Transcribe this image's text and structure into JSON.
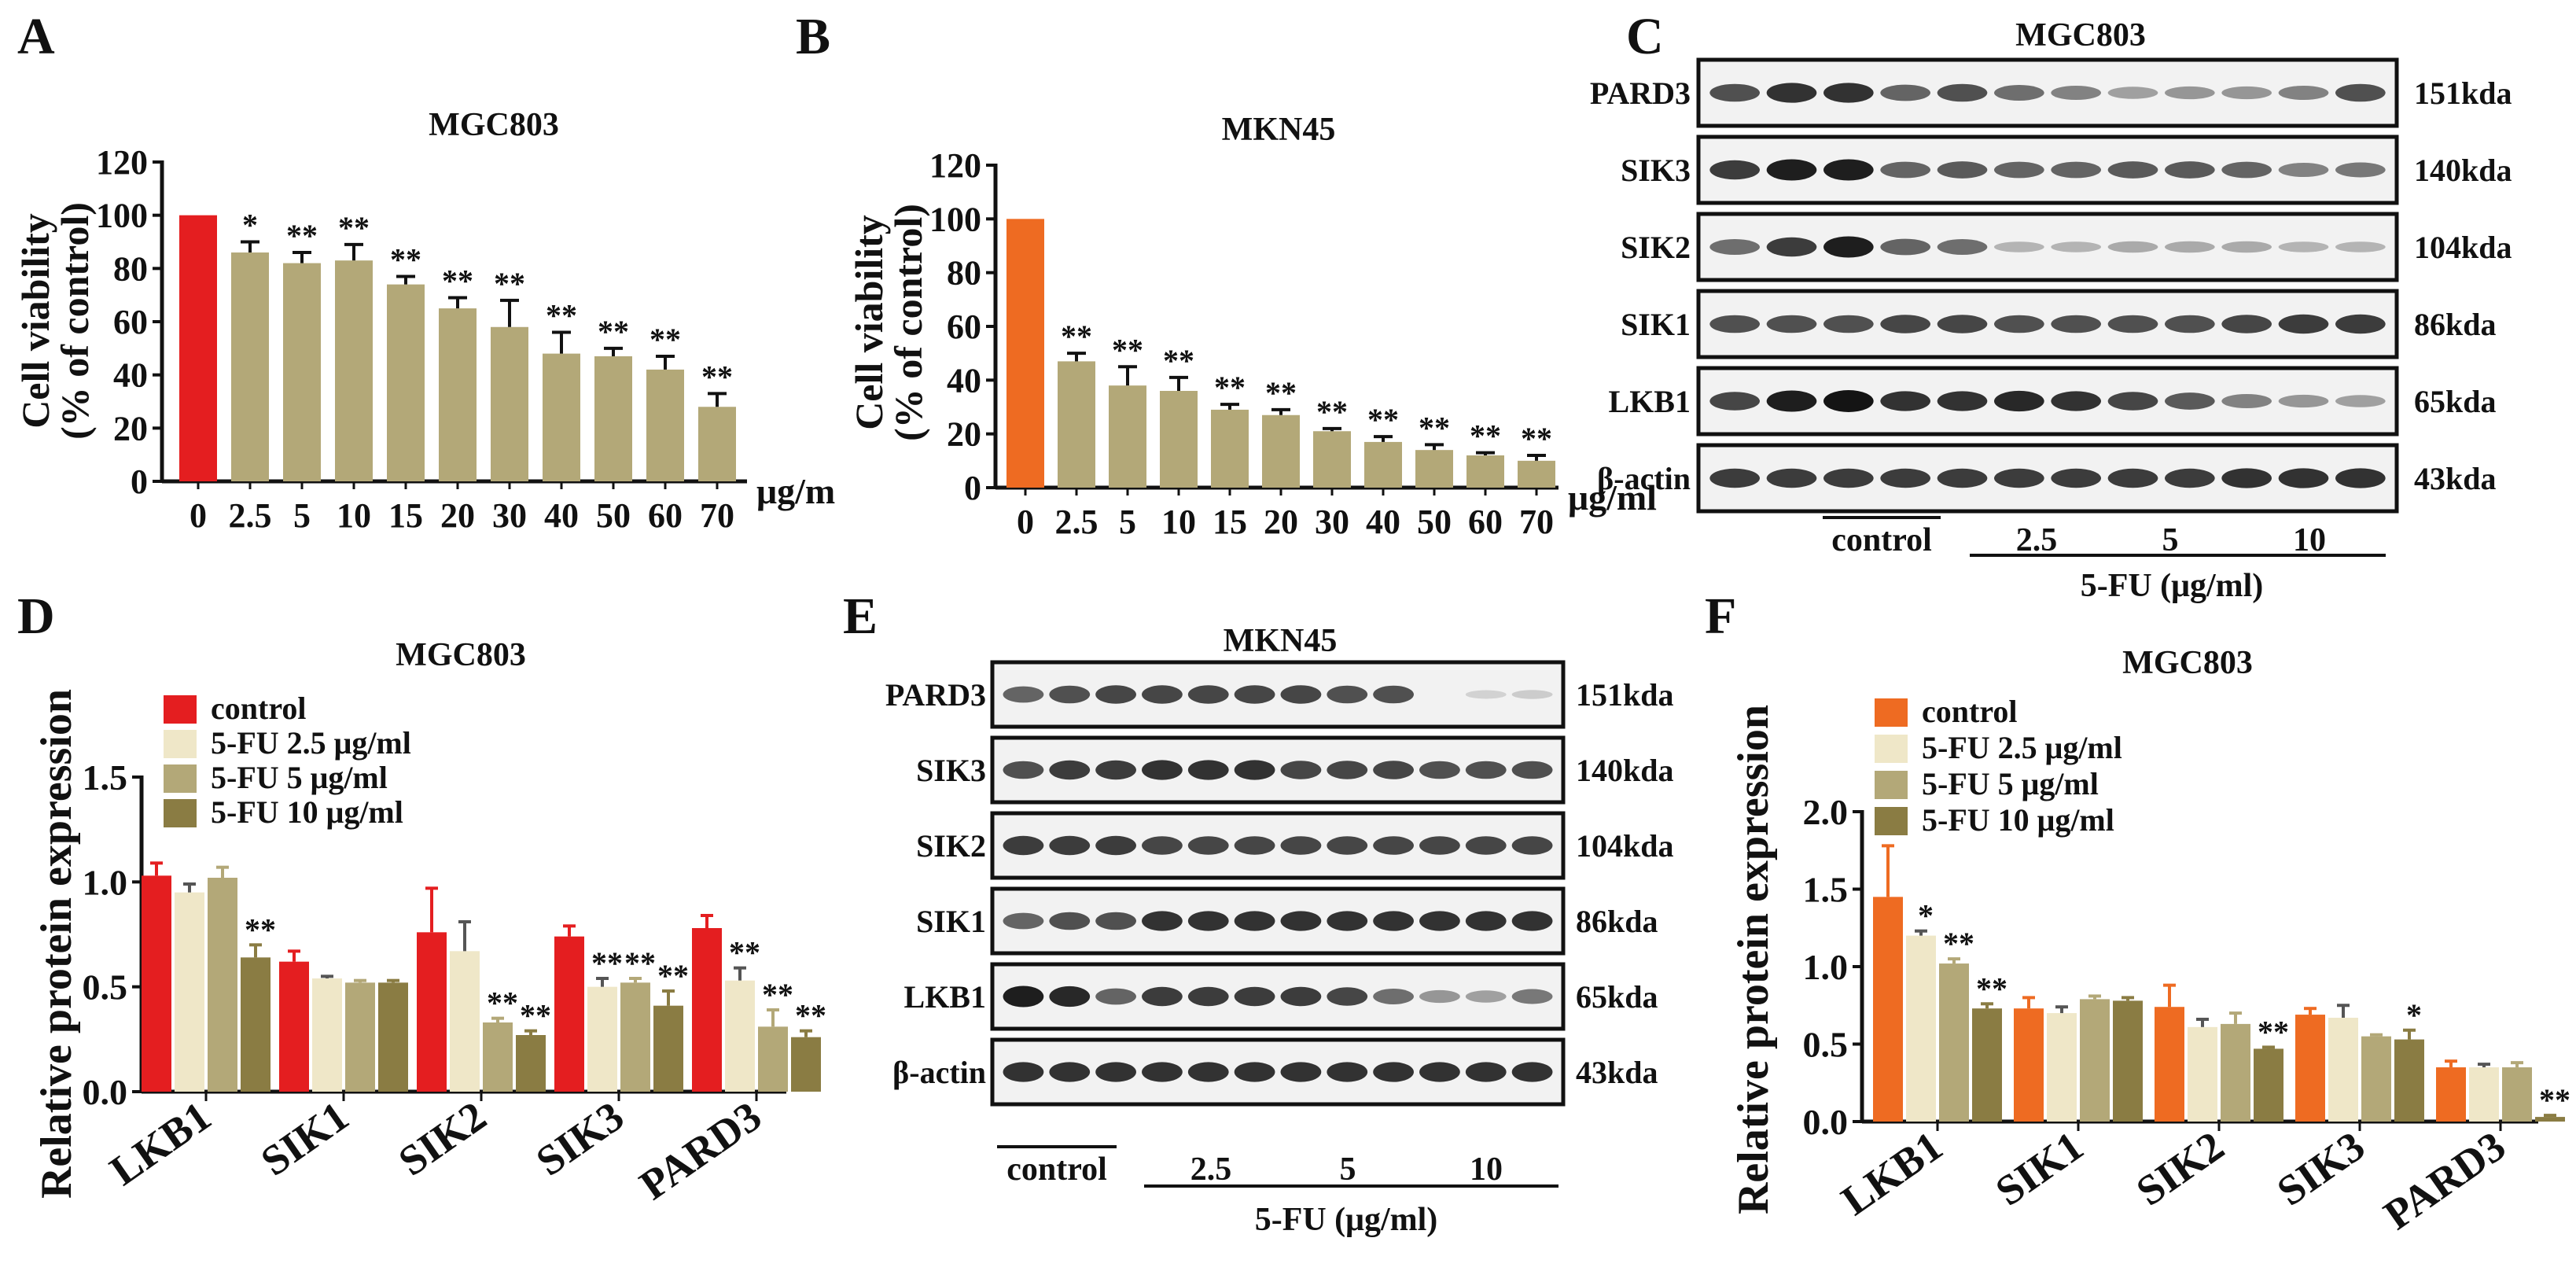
{
  "panels": {
    "A": {
      "letter": "A",
      "chart_data": {
        "type": "bar",
        "title": "MGC803",
        "ylabel_line1": "Cell viability",
        "ylabel_line2": "(% of control)",
        "xunit": "μg/m",
        "ylim": [
          0,
          120
        ],
        "yticks": [
          "0",
          "20",
          "40",
          "60",
          "80",
          "100",
          "120"
        ],
        "categories": [
          "0",
          "2.5",
          "5",
          "10",
          "15",
          "20",
          "30",
          "40",
          "50",
          "60",
          "70"
        ],
        "values": [
          100,
          86,
          82,
          83,
          74,
          65,
          58,
          48,
          47,
          42,
          28
        ],
        "errors": [
          0,
          4,
          4,
          6,
          3,
          4,
          10,
          8,
          3,
          5,
          5
        ],
        "stars": [
          "",
          "*",
          "**",
          "**",
          "**",
          "**",
          "**",
          "**",
          "**",
          "**",
          "**"
        ],
        "colors": [
          "#e41e20",
          "#b3a878",
          "#b3a878",
          "#b3a878",
          "#b3a878",
          "#b3a878",
          "#b3a878",
          "#b3a878",
          "#b3a878",
          "#b3a878",
          "#b3a878"
        ]
      }
    },
    "B": {
      "letter": "B",
      "chart_data": {
        "type": "bar",
        "title": "MKN45",
        "ylabel_line1": "Cell viability",
        "ylabel_line2": "(% of control)",
        "xunit": "μg/ml",
        "ylim": [
          0,
          120
        ],
        "yticks": [
          "0",
          "20",
          "40",
          "60",
          "80",
          "100",
          "120"
        ],
        "categories": [
          "0",
          "2.5",
          "5",
          "10",
          "15",
          "20",
          "30",
          "40",
          "50",
          "60",
          "70"
        ],
        "values": [
          100,
          47,
          38,
          36,
          29,
          27,
          21,
          17,
          14,
          12,
          10
        ],
        "errors": [
          0,
          3,
          7,
          5,
          2,
          2,
          1,
          2,
          2,
          1,
          2
        ],
        "stars": [
          "",
          "**",
          "**",
          "**",
          "**",
          "**",
          "**",
          "**",
          "**",
          "**",
          "**"
        ],
        "colors": [
          "#ee6b22",
          "#b3a878",
          "#b3a878",
          "#b3a878",
          "#b3a878",
          "#b3a878",
          "#b3a878",
          "#b3a878",
          "#b3a878",
          "#b3a878",
          "#b3a878"
        ]
      }
    },
    "C": {
      "letter": "C",
      "title": "MGC803",
      "rows": [
        {
          "label": "PARD3",
          "kda": "151kda"
        },
        {
          "label": "SIK3",
          "kda": "140kda"
        },
        {
          "label": "SIK2",
          "kda": "104kda"
        },
        {
          "label": "SIK1",
          "kda": "86kda"
        },
        {
          "label": "LKB1",
          "kda": "65kda"
        },
        {
          "label": "β-actin",
          "kda": "43kda"
        }
      ],
      "groups": [
        "control",
        "2.5",
        "5",
        "10"
      ],
      "treatment": "5-FU (μg/ml)"
    },
    "D": {
      "letter": "D",
      "chart_data": {
        "type": "bar",
        "title": "MGC803",
        "ylabel": "Relative protein expression",
        "ylim": [
          0,
          1.5
        ],
        "yticks": [
          "0.0",
          "0.5",
          "1.0",
          "1.5"
        ],
        "categories": [
          "LKB1",
          "SIK1",
          "SIK2",
          "SIK3",
          "PARD3"
        ],
        "series": [
          {
            "name": "control",
            "color": "#e41e20",
            "values": [
              1.03,
              0.62,
              0.76,
              0.74,
              0.78
            ],
            "errors": [
              0.06,
              0.05,
              0.21,
              0.05,
              0.06
            ],
            "stars": [
              "",
              "",
              "",
              "",
              ""
            ]
          },
          {
            "name": "5-FU 2.5 μg/ml",
            "color": "#efe7c8",
            "values": [
              0.95,
              0.54,
              0.67,
              0.5,
              0.53
            ],
            "errors": [
              0.04,
              0.01,
              0.14,
              0.04,
              0.06
            ],
            "stars": [
              "",
              "",
              "",
              "**",
              "**"
            ]
          },
          {
            "name": "5-FU 5 μg/ml",
            "color": "#b3a878",
            "values": [
              1.02,
              0.52,
              0.33,
              0.52,
              0.31
            ],
            "errors": [
              0.05,
              0.01,
              0.02,
              0.02,
              0.08
            ],
            "stars": [
              "",
              "",
              "**",
              "**",
              "**"
            ]
          },
          {
            "name": "5-FU 10 μg/ml",
            "color": "#8a7c43",
            "values": [
              0.64,
              0.52,
              0.27,
              0.41,
              0.26
            ],
            "errors": [
              0.06,
              0.01,
              0.02,
              0.07,
              0.03
            ],
            "stars": [
              "**",
              "",
              "**",
              "**",
              "**"
            ]
          }
        ]
      }
    },
    "E": {
      "letter": "E",
      "title": "MKN45",
      "rows": [
        {
          "label": "PARD3",
          "kda": "151kda"
        },
        {
          "label": "SIK3",
          "kda": "140kda"
        },
        {
          "label": "SIK2",
          "kda": "104kda"
        },
        {
          "label": "SIK1",
          "kda": "86kda"
        },
        {
          "label": "LKB1",
          "kda": "65kda"
        },
        {
          "label": "β-actin",
          "kda": "43kda"
        }
      ],
      "groups": [
        "control",
        "2.5",
        "5",
        "10"
      ],
      "treatment": "5-FU (μg/ml)"
    },
    "F": {
      "letter": "F",
      "chart_data": {
        "type": "bar",
        "title": "MGC803",
        "ylabel": "Relative protein expression",
        "ylim": [
          0,
          2.0
        ],
        "yticks": [
          "0.0",
          "0.5",
          "1.0",
          "1.5",
          "2.0"
        ],
        "categories": [
          "LKB1",
          "SIK1",
          "SIK2",
          "SIK3",
          "PARD3"
        ],
        "series": [
          {
            "name": "control",
            "color": "#ee6b22",
            "values": [
              1.45,
              0.73,
              0.74,
              0.69,
              0.35
            ],
            "errors": [
              0.33,
              0.07,
              0.14,
              0.04,
              0.04
            ],
            "stars": [
              "",
              "",
              "",
              "",
              ""
            ]
          },
          {
            "name": "5-FU 2.5 μg/ml",
            "color": "#efe7c8",
            "values": [
              1.2,
              0.7,
              0.61,
              0.67,
              0.35
            ],
            "errors": [
              0.03,
              0.04,
              0.05,
              0.08,
              0.02
            ],
            "stars": [
              "*",
              "",
              "",
              "",
              ""
            ]
          },
          {
            "name": "5-FU 5 μg/ml",
            "color": "#b3a878",
            "values": [
              1.02,
              0.79,
              0.63,
              0.55,
              0.35
            ],
            "errors": [
              0.03,
              0.02,
              0.07,
              0.01,
              0.03
            ],
            "stars": [
              "**",
              "",
              "",
              "",
              ""
            ]
          },
          {
            "name": "5-FU 10 μg/ml",
            "color": "#8a7c43",
            "values": [
              0.73,
              0.78,
              0.47,
              0.53,
              0.03
            ],
            "errors": [
              0.03,
              0.02,
              0.01,
              0.06,
              0.01
            ],
            "stars": [
              "**",
              "",
              "**",
              "*",
              "**"
            ]
          }
        ]
      }
    }
  },
  "blots": {
    "C": {
      "PARD3": [
        0.7,
        0.85,
        0.85,
        0.6,
        0.7,
        0.55,
        0.45,
        0.3,
        0.35,
        0.35,
        0.45,
        0.7
      ],
      "SIK3": [
        0.8,
        0.95,
        0.95,
        0.6,
        0.65,
        0.6,
        0.6,
        0.65,
        0.65,
        0.6,
        0.45,
        0.5
      ],
      "SIK2": [
        0.55,
        0.8,
        0.95,
        0.6,
        0.55,
        0.2,
        0.2,
        0.25,
        0.25,
        0.25,
        0.2,
        0.2
      ],
      "SIK1": [
        0.7,
        0.7,
        0.7,
        0.75,
        0.75,
        0.7,
        0.7,
        0.7,
        0.7,
        0.75,
        0.8,
        0.8
      ],
      "LKB1": [
        0.75,
        0.95,
        1.0,
        0.85,
        0.85,
        0.9,
        0.85,
        0.75,
        0.65,
        0.45,
        0.35,
        0.3
      ],
      "β-actin": [
        0.8,
        0.8,
        0.8,
        0.8,
        0.8,
        0.8,
        0.8,
        0.8,
        0.8,
        0.85,
        0.85,
        0.85
      ]
    },
    "E": {
      "PARD3": [
        0.6,
        0.7,
        0.75,
        0.75,
        0.75,
        0.75,
        0.75,
        0.7,
        0.7,
        0.0,
        0.05,
        0.08
      ],
      "SIK3": [
        0.7,
        0.8,
        0.8,
        0.85,
        0.85,
        0.85,
        0.75,
        0.75,
        0.75,
        0.7,
        0.7,
        0.7
      ],
      "SIK2": [
        0.8,
        0.8,
        0.8,
        0.75,
        0.75,
        0.75,
        0.75,
        0.75,
        0.75,
        0.75,
        0.75,
        0.75
      ],
      "SIK1": [
        0.6,
        0.7,
        0.7,
        0.85,
        0.85,
        0.85,
        0.85,
        0.85,
        0.85,
        0.85,
        0.85,
        0.85
      ],
      "LKB1": [
        0.95,
        0.9,
        0.6,
        0.8,
        0.8,
        0.8,
        0.8,
        0.75,
        0.55,
        0.35,
        0.3,
        0.5
      ],
      "β-actin": [
        0.85,
        0.85,
        0.85,
        0.85,
        0.85,
        0.85,
        0.85,
        0.85,
        0.85,
        0.85,
        0.85,
        0.85
      ]
    }
  }
}
